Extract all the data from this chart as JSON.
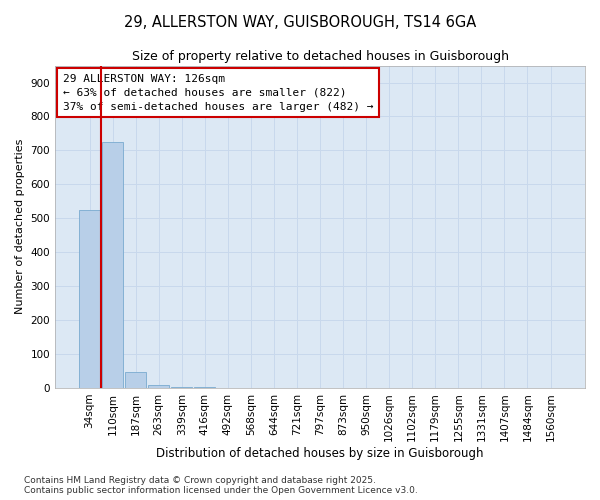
{
  "title_line1": "29, ALLERSTON WAY, GUISBOROUGH, TS14 6GA",
  "title_line2": "Size of property relative to detached houses in Guisborough",
  "xlabel": "Distribution of detached houses by size in Guisborough",
  "ylabel": "Number of detached properties",
  "categories": [
    "34sqm",
    "110sqm",
    "187sqm",
    "263sqm",
    "339sqm",
    "416sqm",
    "492sqm",
    "568sqm",
    "644sqm",
    "721sqm",
    "797sqm",
    "873sqm",
    "950sqm",
    "1026sqm",
    "1102sqm",
    "1179sqm",
    "1255sqm",
    "1331sqm",
    "1407sqm",
    "1484sqm",
    "1560sqm"
  ],
  "values": [
    525,
    725,
    47,
    8,
    2,
    1,
    0,
    0,
    0,
    0,
    0,
    0,
    0,
    0,
    0,
    0,
    0,
    0,
    0,
    0,
    0
  ],
  "bar_color": "#b8cfe8",
  "bar_edge_color": "#7aaad0",
  "red_line_x": 0.5,
  "property_line_color": "#cc0000",
  "annotation_text": "29 ALLERSTON WAY: 126sqm\n← 63% of detached houses are smaller (822)\n37% of semi-detached houses are larger (482) →",
  "annotation_box_facecolor": "#ffffff",
  "annotation_box_edgecolor": "#cc0000",
  "ylim_max": 950,
  "yticks": [
    0,
    100,
    200,
    300,
    400,
    500,
    600,
    700,
    800,
    900
  ],
  "grid_color": "#c8d8ec",
  "plot_bg": "#dce8f4",
  "fig_bg": "#ffffff",
  "footer": "Contains HM Land Registry data © Crown copyright and database right 2025.\nContains public sector information licensed under the Open Government Licence v3.0."
}
